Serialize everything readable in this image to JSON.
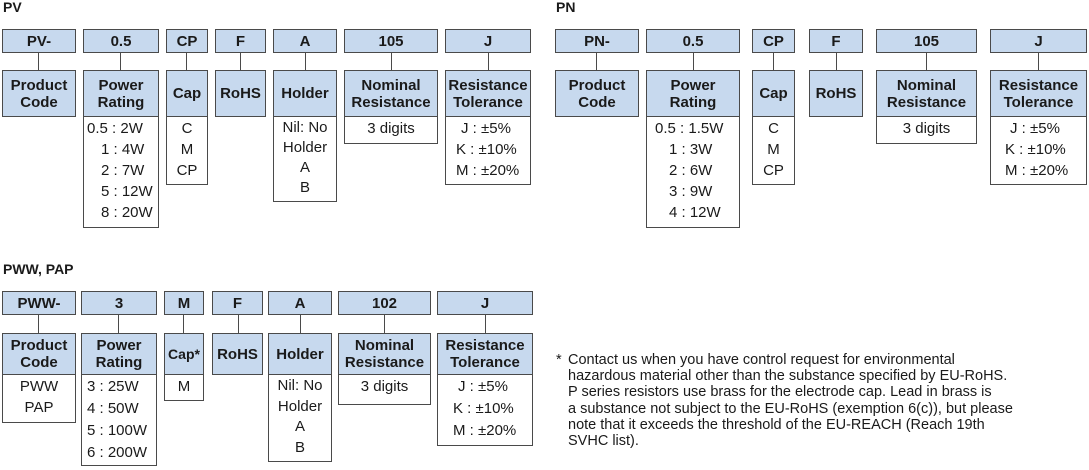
{
  "pv": {
    "title": "PV",
    "codes": [
      "PV-",
      "0.5",
      "CP",
      "F",
      "A",
      "105",
      "J"
    ],
    "product_code": {
      "header": [
        "Product",
        "Code"
      ]
    },
    "power_rating": {
      "header": [
        "Power",
        "Rating"
      ],
      "items": [
        "0.5 : 2W",
        "1 : 4W",
        "2 : 7W",
        "5 : 12W",
        "8 : 20W"
      ]
    },
    "cap": {
      "header": "Cap",
      "items": [
        "C",
        "M",
        "CP"
      ]
    },
    "rohs": {
      "header": "RoHS"
    },
    "holder": {
      "header": "Holder",
      "items": [
        "Nil: No",
        "Holder",
        "A",
        "B"
      ]
    },
    "nominal": {
      "header": [
        "Nominal",
        "Resistance"
      ],
      "items": [
        "3 digits"
      ]
    },
    "tolerance": {
      "header": [
        "Resistance",
        "Tolerance"
      ],
      "items": [
        "J : ±5%",
        "K : ±10%",
        "M : ±20%"
      ]
    }
  },
  "pn": {
    "title": "PN",
    "codes": [
      "PN-",
      "0.5",
      "CP",
      "F",
      "105",
      "J"
    ],
    "product_code": {
      "header": [
        "Product",
        "Code"
      ]
    },
    "power_rating": {
      "header": [
        "Power",
        "Rating"
      ],
      "items": [
        "0.5 : 1.5W",
        "1 : 3W",
        "2 : 6W",
        "3 : 9W",
        "4 : 12W"
      ]
    },
    "cap": {
      "header": "Cap",
      "items": [
        "C",
        "M",
        "CP"
      ]
    },
    "rohs": {
      "header": "RoHS"
    },
    "nominal": {
      "header": [
        "Nominal",
        "Resistance"
      ],
      "items": [
        "3 digits"
      ]
    },
    "tolerance": {
      "header": [
        "Resistance",
        "Tolerance"
      ],
      "items": [
        "J : ±5%",
        "K : ±10%",
        "M : ±20%"
      ]
    }
  },
  "pww": {
    "title": "PWW, PAP",
    "codes": [
      "PWW-",
      "3",
      "M",
      "F",
      "A",
      "102",
      "J"
    ],
    "product_code": {
      "header": [
        "Product",
        "Code"
      ],
      "items": [
        "PWW",
        "PAP"
      ]
    },
    "power_rating": {
      "header": [
        "Power",
        "Rating"
      ],
      "items": [
        "3 : 25W",
        "4 : 50W",
        "5 : 100W",
        "6 : 200W"
      ]
    },
    "cap": {
      "header": "Cap*",
      "items": [
        "M"
      ]
    },
    "rohs": {
      "header": "RoHS"
    },
    "holder": {
      "header": "Holder",
      "items": [
        "Nil: No",
        "Holder",
        "A",
        "B"
      ]
    },
    "nominal": {
      "header": [
        "Nominal",
        "Resistance"
      ],
      "items": [
        "3 digits"
      ]
    },
    "tolerance": {
      "header": [
        "Resistance",
        "Tolerance"
      ],
      "items": [
        "J : ±5%",
        "K : ±10%",
        "M : ±20%"
      ]
    }
  },
  "note": {
    "marker": "*",
    "lines": [
      "Contact us when you have control request for environmental",
      "hazardous material other than the substance specified by EU-RoHS.",
      "P series resistors use brass for the electrode cap. Lead in brass is",
      "a substance not subject to the EU-RoHS (exemption 6(c)), but please",
      "note that it exceeds the threshold of the EU-REACH (Reach 19th",
      "SVHC list)."
    ]
  }
}
